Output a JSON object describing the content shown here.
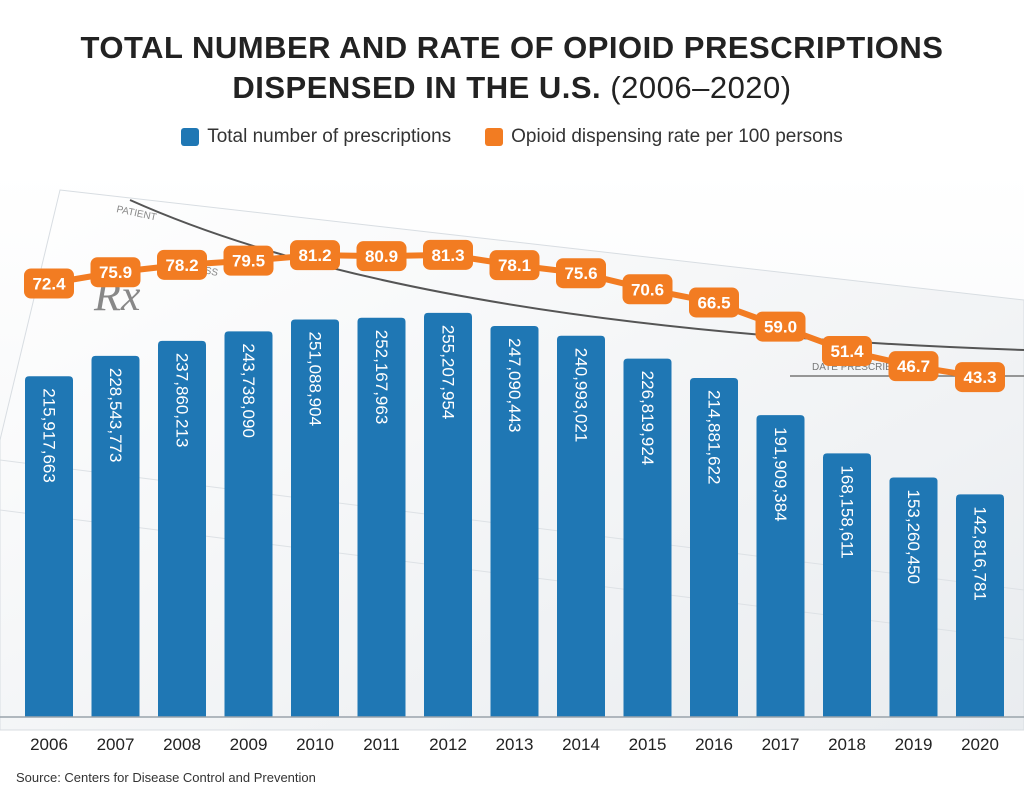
{
  "title": {
    "line1": "TOTAL NUMBER AND RATE OF OPIOID PRESCRIPTIONS",
    "line2": "DISPENSED IN THE U.S.",
    "line2_sub": "(2006–2020)"
  },
  "legend": {
    "bars_label": "Total number of prescriptions",
    "line_label": "Opioid dispensing rate per 100 persons"
  },
  "background": {
    "form_labels": [
      "PATIENT",
      "ADDRESS",
      "DATE PRESCRIBED"
    ],
    "rx_symbol": "Rx"
  },
  "source": "Source: Centers for Disease Control and Prevention",
  "colors": {
    "bar": "#1f77b4",
    "line": "#f27c22",
    "text_dark": "#222222"
  },
  "chart_data": {
    "type": "bar",
    "title": "Total Number and Rate of Opioid Prescriptions Dispensed in the U.S. (2006–2020)",
    "categories": [
      "2006",
      "2007",
      "2008",
      "2009",
      "2010",
      "2011",
      "2012",
      "2013",
      "2014",
      "2015",
      "2016",
      "2017",
      "2018",
      "2019",
      "2020"
    ],
    "series": [
      {
        "name": "Total number of prescriptions",
        "type": "bar",
        "values": [
          215917663,
          228543773,
          237860213,
          243738090,
          251088904,
          252167963,
          255207954,
          247090443,
          240993021,
          226819924,
          214881622,
          191909384,
          168158611,
          153260450,
          142816781
        ],
        "labels": [
          "215,917,663",
          "228,543,773",
          "237,860,213",
          "243,738,090",
          "251,088,904",
          "252,167,963",
          "255,207,954",
          "247,090,443",
          "240,993,021",
          "226,819,924",
          "214,881,622",
          "191,909,384",
          "168,158,611",
          "153,260,450",
          "142,816,781"
        ]
      },
      {
        "name": "Opioid dispensing rate per 100 persons",
        "type": "line",
        "values": [
          72.4,
          75.9,
          78.2,
          79.5,
          81.2,
          80.9,
          81.3,
          78.1,
          75.6,
          70.6,
          66.5,
          59.0,
          51.4,
          46.7,
          43.3
        ],
        "labels": [
          "72.4",
          "75.9",
          "78.2",
          "79.5",
          "81.2",
          "80.9",
          "81.3",
          "78.1",
          "75.6",
          "70.6",
          "66.5",
          "59.0",
          "51.4",
          "46.7",
          "43.3"
        ]
      }
    ],
    "xlabel": "",
    "ylabel": ""
  }
}
